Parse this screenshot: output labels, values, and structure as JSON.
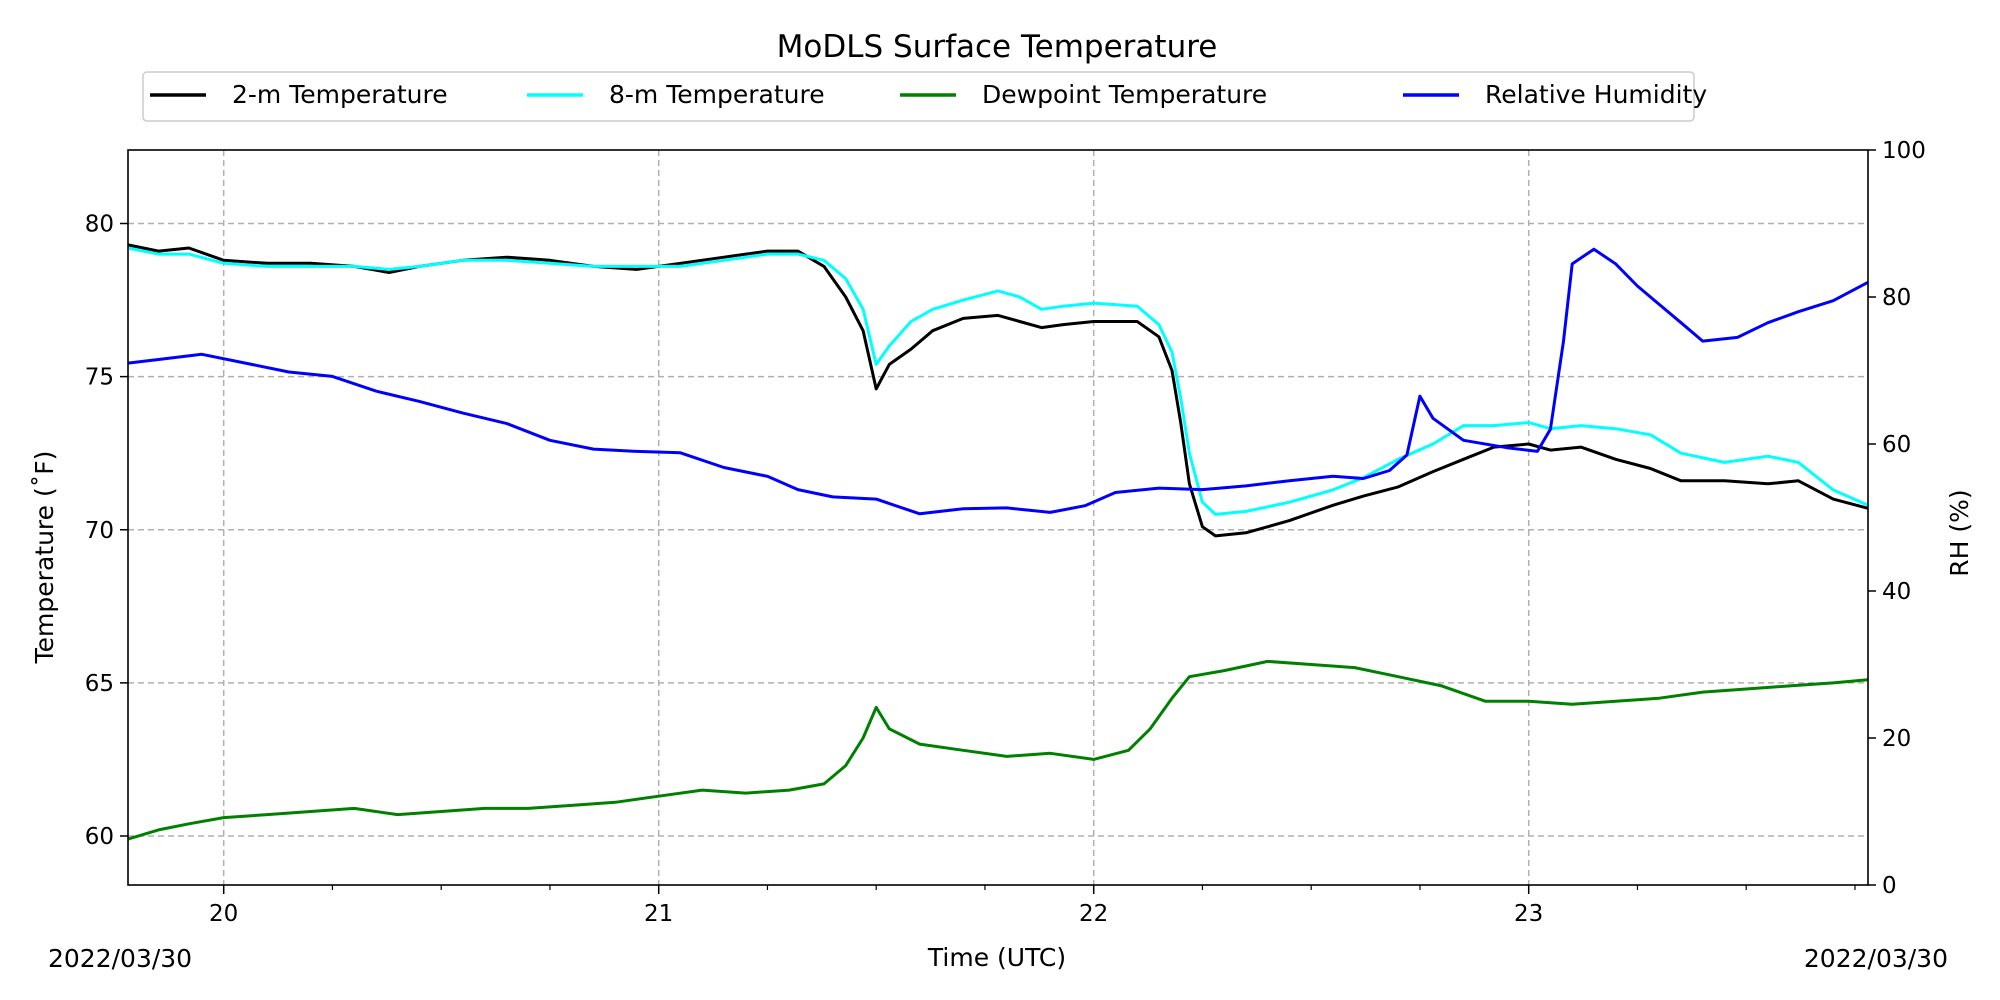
{
  "chart_data": {
    "type": "line",
    "title": "MoDLS Surface Temperature",
    "xlabel": "Time (UTC)",
    "ylabel": "Temperature ($^\\circ$F)",
    "ylabel_display": "Temperature (˚F)",
    "y2label": "RH (%)",
    "x_unit": "hour (UTC)",
    "xlim": [
      19.78,
      23.78
    ],
    "ylim": [
      58.4,
      82.4
    ],
    "y2lim": [
      0,
      100
    ],
    "x_ticks": [
      20,
      21,
      22,
      23
    ],
    "x_tick_labels": [
      "20",
      "21",
      "22",
      "23"
    ],
    "y_ticks": [
      60,
      65,
      70,
      75,
      80
    ],
    "y_tick_labels": [
      "60",
      "65",
      "70",
      "75",
      "80"
    ],
    "y2_ticks": [
      0,
      20,
      40,
      60,
      80,
      100
    ],
    "y2_tick_labels": [
      "0",
      "20",
      "40",
      "60",
      "80",
      "100"
    ],
    "start_date_label": "2022/03/30",
    "end_date_label": "2022/03/30",
    "grid": true,
    "legend_position": "top-center",
    "series": [
      {
        "name": "2-m Temperature",
        "axis": "left",
        "color": "#000000",
        "points": [
          [
            19.78,
            79.3
          ],
          [
            19.85,
            79.1
          ],
          [
            19.92,
            79.2
          ],
          [
            20.0,
            78.8
          ],
          [
            20.1,
            78.7
          ],
          [
            20.2,
            78.7
          ],
          [
            20.3,
            78.6
          ],
          [
            20.38,
            78.4
          ],
          [
            20.45,
            78.6
          ],
          [
            20.55,
            78.8
          ],
          [
            20.65,
            78.9
          ],
          [
            20.75,
            78.8
          ],
          [
            20.85,
            78.6
          ],
          [
            20.95,
            78.5
          ],
          [
            21.05,
            78.7
          ],
          [
            21.15,
            78.9
          ],
          [
            21.25,
            79.1
          ],
          [
            21.32,
            79.1
          ],
          [
            21.38,
            78.6
          ],
          [
            21.43,
            77.6
          ],
          [
            21.47,
            76.5
          ],
          [
            21.5,
            74.6
          ],
          [
            21.53,
            75.4
          ],
          [
            21.58,
            75.9
          ],
          [
            21.63,
            76.5
          ],
          [
            21.7,
            76.9
          ],
          [
            21.78,
            77.0
          ],
          [
            21.83,
            76.8
          ],
          [
            21.88,
            76.6
          ],
          [
            21.93,
            76.7
          ],
          [
            22.0,
            76.8
          ],
          [
            22.1,
            76.8
          ],
          [
            22.15,
            76.3
          ],
          [
            22.18,
            75.2
          ],
          [
            22.2,
            73.5
          ],
          [
            22.22,
            71.5
          ],
          [
            22.25,
            70.1
          ],
          [
            22.28,
            69.8
          ],
          [
            22.35,
            69.9
          ],
          [
            22.45,
            70.3
          ],
          [
            22.55,
            70.8
          ],
          [
            22.62,
            71.1
          ],
          [
            22.7,
            71.4
          ],
          [
            22.78,
            71.9
          ],
          [
            22.85,
            72.3
          ],
          [
            22.92,
            72.7
          ],
          [
            23.0,
            72.8
          ],
          [
            23.05,
            72.6
          ],
          [
            23.12,
            72.7
          ],
          [
            23.2,
            72.3
          ],
          [
            23.28,
            72.0
          ],
          [
            23.35,
            71.6
          ],
          [
            23.45,
            71.6
          ],
          [
            23.55,
            71.5
          ],
          [
            23.62,
            71.6
          ],
          [
            23.7,
            71.0
          ],
          [
            23.78,
            70.7
          ]
        ]
      },
      {
        "name": "8-m Temperature",
        "axis": "left",
        "color": "#00ffff",
        "points": [
          [
            19.78,
            79.2
          ],
          [
            19.85,
            79.0
          ],
          [
            19.92,
            79.0
          ],
          [
            20.0,
            78.7
          ],
          [
            20.1,
            78.6
          ],
          [
            20.2,
            78.6
          ],
          [
            20.3,
            78.6
          ],
          [
            20.38,
            78.5
          ],
          [
            20.45,
            78.6
          ],
          [
            20.55,
            78.8
          ],
          [
            20.65,
            78.8
          ],
          [
            20.75,
            78.7
          ],
          [
            20.85,
            78.6
          ],
          [
            20.95,
            78.6
          ],
          [
            21.05,
            78.6
          ],
          [
            21.15,
            78.8
          ],
          [
            21.25,
            79.0
          ],
          [
            21.32,
            79.0
          ],
          [
            21.38,
            78.8
          ],
          [
            21.43,
            78.2
          ],
          [
            21.47,
            77.2
          ],
          [
            21.5,
            75.4
          ],
          [
            21.53,
            76.0
          ],
          [
            21.58,
            76.8
          ],
          [
            21.63,
            77.2
          ],
          [
            21.7,
            77.5
          ],
          [
            21.78,
            77.8
          ],
          [
            21.83,
            77.6
          ],
          [
            21.88,
            77.2
          ],
          [
            21.93,
            77.3
          ],
          [
            22.0,
            77.4
          ],
          [
            22.1,
            77.3
          ],
          [
            22.15,
            76.7
          ],
          [
            22.18,
            75.8
          ],
          [
            22.2,
            74.3
          ],
          [
            22.22,
            72.5
          ],
          [
            22.25,
            70.9
          ],
          [
            22.28,
            70.5
          ],
          [
            22.35,
            70.6
          ],
          [
            22.45,
            70.9
          ],
          [
            22.55,
            71.3
          ],
          [
            22.62,
            71.7
          ],
          [
            22.7,
            72.3
          ],
          [
            22.78,
            72.8
          ],
          [
            22.85,
            73.4
          ],
          [
            22.92,
            73.4
          ],
          [
            23.0,
            73.5
          ],
          [
            23.05,
            73.3
          ],
          [
            23.12,
            73.4
          ],
          [
            23.2,
            73.3
          ],
          [
            23.28,
            73.1
          ],
          [
            23.35,
            72.5
          ],
          [
            23.45,
            72.2
          ],
          [
            23.55,
            72.4
          ],
          [
            23.62,
            72.2
          ],
          [
            23.7,
            71.3
          ],
          [
            23.78,
            70.8
          ]
        ]
      },
      {
        "name": "Dewpoint Temperature",
        "axis": "left",
        "color": "#008000",
        "points": [
          [
            19.78,
            59.9
          ],
          [
            19.85,
            60.2
          ],
          [
            19.92,
            60.4
          ],
          [
            20.0,
            60.6
          ],
          [
            20.1,
            60.7
          ],
          [
            20.2,
            60.8
          ],
          [
            20.3,
            60.9
          ],
          [
            20.4,
            60.7
          ],
          [
            20.5,
            60.8
          ],
          [
            20.6,
            60.9
          ],
          [
            20.7,
            60.9
          ],
          [
            20.8,
            61.0
          ],
          [
            20.9,
            61.1
          ],
          [
            21.0,
            61.3
          ],
          [
            21.1,
            61.5
          ],
          [
            21.2,
            61.4
          ],
          [
            21.3,
            61.5
          ],
          [
            21.38,
            61.7
          ],
          [
            21.43,
            62.3
          ],
          [
            21.47,
            63.2
          ],
          [
            21.5,
            64.2
          ],
          [
            21.53,
            63.5
          ],
          [
            21.6,
            63.0
          ],
          [
            21.7,
            62.8
          ],
          [
            21.8,
            62.6
          ],
          [
            21.9,
            62.7
          ],
          [
            22.0,
            62.5
          ],
          [
            22.08,
            62.8
          ],
          [
            22.13,
            63.5
          ],
          [
            22.18,
            64.5
          ],
          [
            22.22,
            65.2
          ],
          [
            22.3,
            65.4
          ],
          [
            22.4,
            65.7
          ],
          [
            22.5,
            65.6
          ],
          [
            22.6,
            65.5
          ],
          [
            22.7,
            65.2
          ],
          [
            22.8,
            64.9
          ],
          [
            22.9,
            64.4
          ],
          [
            23.0,
            64.4
          ],
          [
            23.1,
            64.3
          ],
          [
            23.2,
            64.4
          ],
          [
            23.3,
            64.5
          ],
          [
            23.4,
            64.7
          ],
          [
            23.5,
            64.8
          ],
          [
            23.6,
            64.9
          ],
          [
            23.7,
            65.0
          ],
          [
            23.78,
            65.1
          ]
        ]
      },
      {
        "name": "Relative Humidity",
        "axis": "right",
        "color": "#0000ff",
        "points": [
          [
            19.78,
            71.0
          ],
          [
            19.85,
            71.5
          ],
          [
            19.95,
            72.2
          ],
          [
            20.05,
            71.0
          ],
          [
            20.15,
            69.8
          ],
          [
            20.25,
            69.2
          ],
          [
            20.35,
            67.2
          ],
          [
            20.45,
            65.8
          ],
          [
            20.55,
            64.2
          ],
          [
            20.65,
            62.8
          ],
          [
            20.75,
            60.5
          ],
          [
            20.85,
            59.3
          ],
          [
            20.95,
            59.0
          ],
          [
            21.05,
            58.8
          ],
          [
            21.15,
            56.8
          ],
          [
            21.25,
            55.6
          ],
          [
            21.32,
            53.8
          ],
          [
            21.4,
            52.8
          ],
          [
            21.5,
            52.5
          ],
          [
            21.6,
            50.5
          ],
          [
            21.7,
            51.2
          ],
          [
            21.8,
            51.3
          ],
          [
            21.9,
            50.7
          ],
          [
            21.98,
            51.6
          ],
          [
            22.05,
            53.4
          ],
          [
            22.15,
            54.0
          ],
          [
            22.25,
            53.8
          ],
          [
            22.35,
            54.3
          ],
          [
            22.45,
            55.0
          ],
          [
            22.55,
            55.6
          ],
          [
            22.62,
            55.3
          ],
          [
            22.68,
            56.4
          ],
          [
            22.72,
            58.5
          ],
          [
            22.75,
            66.5
          ],
          [
            22.78,
            63.5
          ],
          [
            22.85,
            60.5
          ],
          [
            22.95,
            59.5
          ],
          [
            23.02,
            59.0
          ],
          [
            23.05,
            62.0
          ],
          [
            23.08,
            74.0
          ],
          [
            23.1,
            84.5
          ],
          [
            23.15,
            86.5
          ],
          [
            23.2,
            84.5
          ],
          [
            23.25,
            81.5
          ],
          [
            23.3,
            79.0
          ],
          [
            23.35,
            76.5
          ],
          [
            23.4,
            74.0
          ],
          [
            23.48,
            74.5
          ],
          [
            23.55,
            76.5
          ],
          [
            23.62,
            78.0
          ],
          [
            23.7,
            79.5
          ],
          [
            23.78,
            82.0
          ]
        ]
      }
    ]
  }
}
